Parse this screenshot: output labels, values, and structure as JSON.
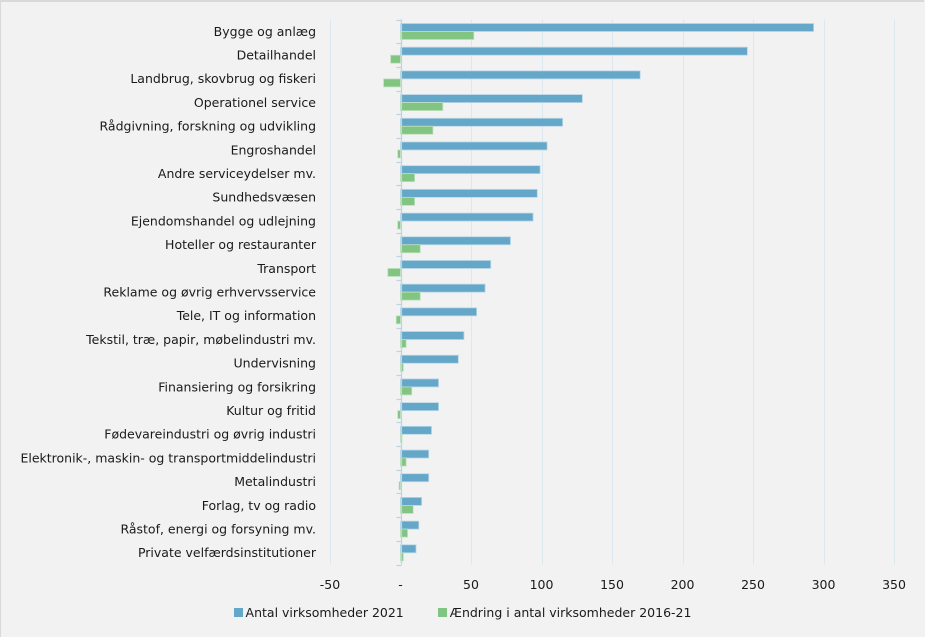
{
  "chart_data": {
    "type": "bar",
    "orientation": "horizontal",
    "title": "",
    "xlabel": "",
    "ylabel": "",
    "xlim": [
      -50,
      350
    ],
    "xticks": [
      -50,
      0,
      50,
      100,
      150,
      200,
      250,
      300,
      350
    ],
    "xtick_labels": [
      "-50",
      "-",
      "50",
      "100",
      "150",
      "200",
      "250",
      "300",
      "350"
    ],
    "grid": true,
    "legend_position": "bottom",
    "categories": [
      "Bygge og anlæg",
      "Detailhandel",
      "Landbrug, skovbrug og fiskeri",
      "Operationel service",
      "Rådgivning, forskning og udvikling",
      "Engroshandel",
      "Andre serviceydelser mv.",
      "Sundhedsvæsen",
      "Ejendomshandel og udlejning",
      "Hoteller og restauranter",
      "Transport",
      "Reklame og øvrig erhvervsservice",
      "Tele, IT og information",
      "Tekstil, træ, papir, møbelindustri mv.",
      "Undervisning",
      "Finansiering og forsikring",
      "Kultur og fritid",
      "Fødevareindustri og øvrig industri",
      "Elektronik-, maskin- og transportmiddelindustri",
      "Metalindustri",
      "Forlag, tv og radio",
      "Råstof, energi og forsyning mv.",
      "Private velfærdsinstitutioner"
    ],
    "series": [
      {
        "name": "Antal virksomheder 2021",
        "color": "#64a7c8",
        "values": [
          293,
          246,
          170,
          129,
          115,
          104,
          99,
          97,
          94,
          78,
          64,
          60,
          54,
          45,
          41,
          27,
          27,
          22,
          20,
          20,
          15,
          13,
          11
        ]
      },
      {
        "name": "Ændring i antal virksomheder 2016-21",
        "color": "#82c482",
        "values": [
          52,
          -7,
          -12,
          30,
          23,
          -2,
          10,
          10,
          -2,
          14,
          -9,
          14,
          -3,
          4,
          2,
          8,
          -2,
          1,
          4,
          -1,
          9,
          5,
          2
        ]
      }
    ]
  }
}
